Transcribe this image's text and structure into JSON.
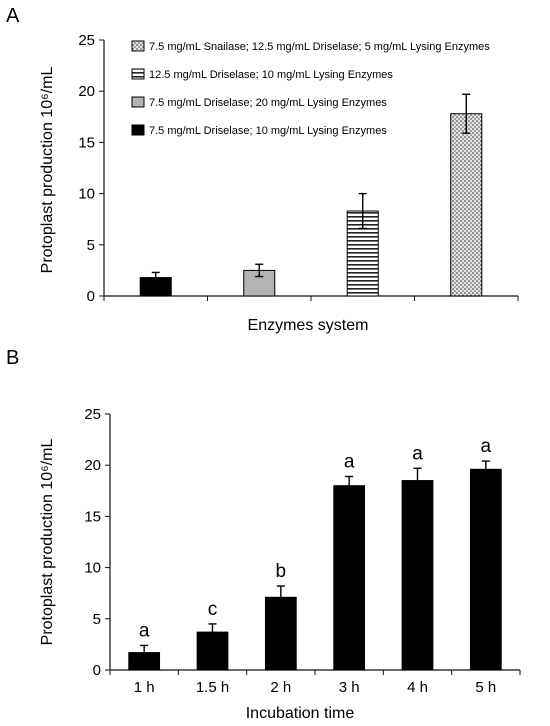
{
  "panels": [
    "A",
    "B"
  ],
  "colors": {
    "bar_solid": "#000000",
    "bar_gray": "#b3b3b3",
    "axis": "#111111"
  },
  "chart_data": [
    {
      "panel": "A",
      "type": "bar",
      "xlabel": "Enzymes system",
      "ylabel": "Protoplast production 10⁶/mL",
      "ylim": [
        0,
        25
      ],
      "yticks": [
        0,
        5,
        10,
        15,
        20,
        25
      ],
      "grid": false,
      "legend_position": "top",
      "categories": [
        "7.5 mg/mL Driselase; 10 mg/mL Lysing Enzymes",
        "7.5 mg/mL Driselase; 20 mg/mL Lysing Enzymes",
        "12.5 mg/mL Driselase; 10 mg/mL Lysing Enzymes",
        "7.5 mg/mL Snailase; 12.5 mg/mL Driselase; 5 mg/mL Lysing Enzymes"
      ],
      "values": [
        1.8,
        2.5,
        8.3,
        17.8
      ],
      "errors": [
        0.5,
        0.6,
        1.7,
        1.9
      ],
      "fills": [
        "solid-black",
        "solid-gray",
        "horizontal-stripes",
        "dotted"
      ],
      "legend_order": [
        3,
        2,
        1,
        0
      ]
    },
    {
      "panel": "B",
      "type": "bar",
      "xlabel": "Incubation time",
      "ylabel": "Protoplast production 10⁶/mL",
      "ylim": [
        0,
        25
      ],
      "yticks": [
        0,
        5,
        10,
        15,
        20,
        25
      ],
      "grid": false,
      "categories": [
        "1 h",
        "1.5 h",
        "2 h",
        "3 h",
        "4 h",
        "5 h"
      ],
      "values": [
        1.7,
        3.7,
        7.1,
        18.0,
        18.5,
        19.6
      ],
      "errors": [
        0.7,
        0.8,
        1.1,
        0.9,
        1.2,
        0.8
      ],
      "annotations": [
        "a",
        "c",
        "b",
        "a",
        "a",
        "a"
      ]
    }
  ]
}
